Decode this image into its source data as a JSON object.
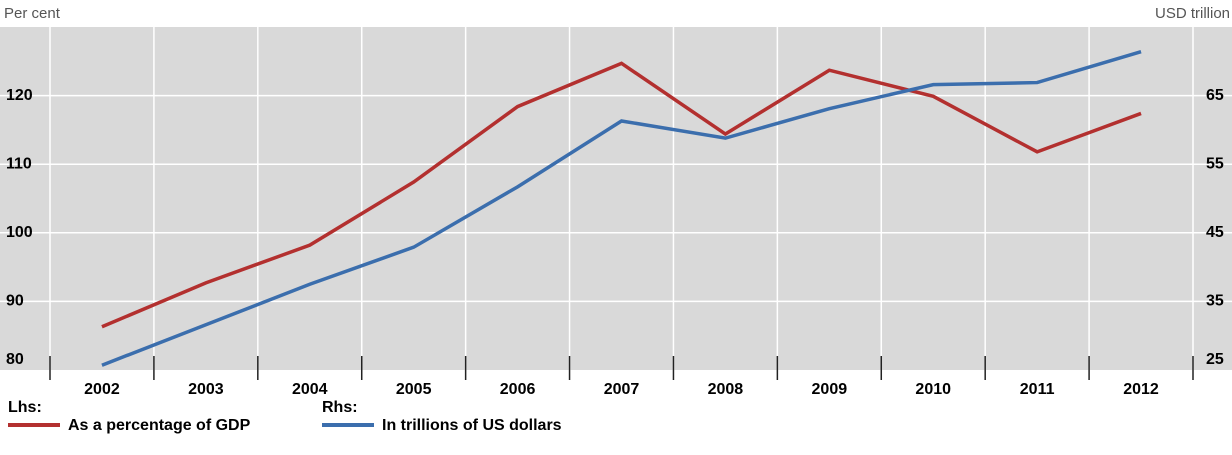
{
  "chart_data": {
    "type": "line",
    "ylabel": "Per cent",
    "y2label": "USD trillion",
    "categories": [
      "2002",
      "2003",
      "2004",
      "2005",
      "2006",
      "2007",
      "2008",
      "2009",
      "2010",
      "2011",
      "2012"
    ],
    "series": [
      {
        "name": "As a percentage of GDP",
        "legend_group": "Lhs:",
        "color": "#b3302f",
        "axis": "y",
        "values": [
          86.3,
          92.7,
          98.2,
          107.4,
          118.4,
          124.7,
          114.4,
          123.7,
          119.9,
          111.8,
          117.4
        ]
      },
      {
        "name": "In trillions of US dollars",
        "legend_group": "Rhs:",
        "color": "#3b6ead",
        "axis": "y2",
        "values": [
          25.7,
          31.6,
          37.5,
          42.9,
          51.7,
          61.3,
          58.8,
          63.1,
          66.6,
          66.9,
          71.4
        ]
      }
    ],
    "ylim": [
      80,
      130
    ],
    "yticks": [
      80,
      90,
      100,
      110,
      120
    ],
    "y2lim": [
      25,
      75
    ],
    "y2ticks": [
      25,
      35,
      45,
      55,
      65
    ],
    "grid": true
  }
}
